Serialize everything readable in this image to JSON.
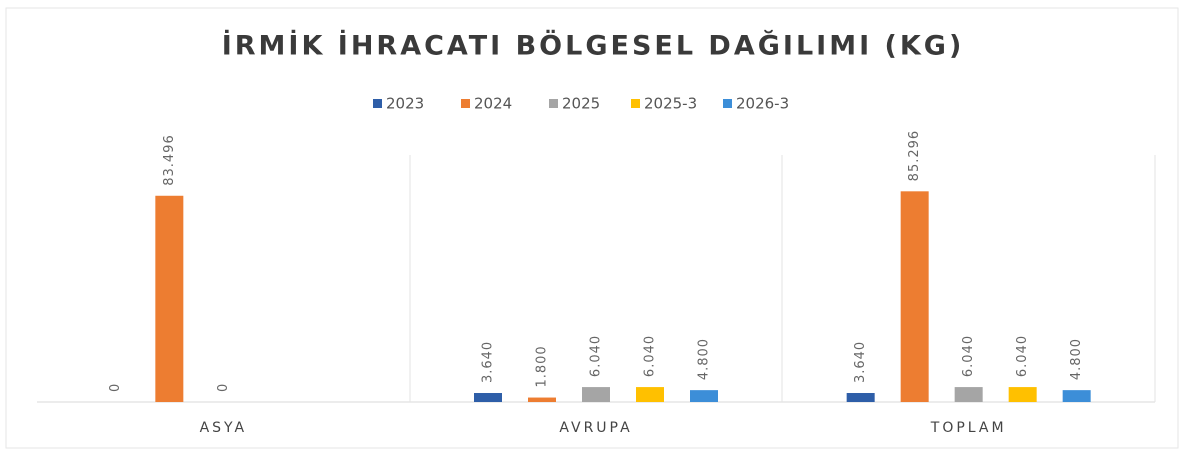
{
  "chart_data": {
    "type": "bar",
    "title": "İRMİK İHRACATI BÖLGESEL DAĞILIMI (KG)",
    "categories": [
      "ASYA",
      "AVRUPA",
      "TOPLAM"
    ],
    "series": [
      {
        "name": "2023",
        "color": "#2e5ea8",
        "values": [
          0,
          3640,
          3640
        ],
        "value_labels": [
          "0",
          "3.640",
          "3.640"
        ]
      },
      {
        "name": "2024",
        "color": "#ed7d31",
        "values": [
          83496,
          1800,
          85296
        ],
        "value_labels": [
          "83.496",
          "1.800",
          "85.296"
        ]
      },
      {
        "name": "2025",
        "color": "#a5a5a5",
        "values": [
          0,
          6040,
          6040
        ],
        "value_labels": [
          "0",
          "6.040",
          "6.040"
        ]
      },
      {
        "name": "2025-3",
        "color": "#ffc000",
        "values": [
          null,
          6040,
          6040
        ],
        "value_labels": [
          null,
          "6.040",
          "6.040"
        ]
      },
      {
        "name": "2026-3",
        "color": "#3c8ed8",
        "values": [
          null,
          4800,
          4800
        ],
        "value_labels": [
          null,
          "4.800",
          "4.800"
        ]
      }
    ],
    "ylim": [
      0,
      100000
    ],
    "legend": "top"
  }
}
